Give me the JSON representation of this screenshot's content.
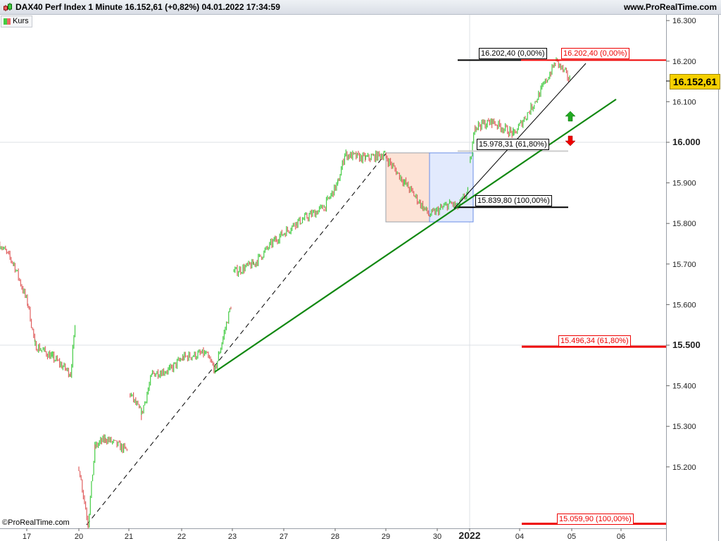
{
  "header": {
    "title": "DAX40 Perf Index 1 Minute 16.152,61 (+0,82%) 04.01.2022 17:34:59",
    "site": "www.ProRealTime.com",
    "legend": "Kurs"
  },
  "footer": {
    "copyright": "©ProRealTime.com"
  },
  "colors": {
    "up": "#44cc44",
    "down": "#e06060",
    "trend": "#118811",
    "fib_red": "#ee0000",
    "price_box": "#f5d000",
    "rect_orange": "#fde3d6",
    "rect_blue": "#e2eafd"
  },
  "current_price": "16.152,61",
  "chart_data": {
    "type": "candlestick",
    "title": "DAX40 Perf Index 1 Minute",
    "x_tick_labels": [
      "17",
      "20",
      "21",
      "22",
      "23",
      "27",
      "28",
      "29",
      "30",
      "2022",
      "04",
      "05",
      "06"
    ],
    "y_tick_labels": [
      "16.300",
      "16.200",
      "16.100",
      "16.000",
      "15.900",
      "15.800",
      "15.700",
      "15.600",
      "15.500",
      "15.400",
      "15.300",
      "15.200"
    ],
    "y_ticks": [
      16300,
      16200,
      16100,
      16000,
      15900,
      15800,
      15700,
      15600,
      15500,
      15400,
      15300,
      15200
    ],
    "ylim": [
      15040,
      16330
    ],
    "grid": "horizontal at 16000 and 15500, vertical at 2022",
    "price_path": [
      [
        "2021-12-16 14:40",
        15750
      ],
      [
        "2021-12-16 18:30",
        15700
      ],
      [
        "2021-12-17 08:20",
        15600
      ],
      [
        "2021-12-17 10:15",
        15500
      ],
      [
        "2021-12-17 15:00",
        15470
      ],
      [
        "2021-12-17 19:45",
        15430
      ],
      [
        "2021-12-17 21:15",
        15570
      ],
      [
        "2021-12-20 08:00",
        15200
      ],
      [
        "2021-12-20 10:35",
        15060
      ],
      [
        "2021-12-20 12:30",
        15250
      ],
      [
        "2021-12-20 15:30",
        15270
      ],
      [
        "2021-12-20 21:30",
        15240
      ],
      [
        "2021-12-21 08:20",
        15380
      ],
      [
        "2021-12-21 11:20",
        15330
      ],
      [
        "2021-12-21 14:15",
        15430
      ],
      [
        "2021-12-21 19:00",
        15440
      ],
      [
        "2021-12-22 08:25",
        15470
      ],
      [
        "2021-12-22 14:25",
        15480
      ],
      [
        "2021-12-22 17:15",
        15440
      ],
      [
        "2021-12-22 21:40",
        15600
      ],
      [
        "2021-12-23 08:25",
        15680
      ],
      [
        "2021-12-23 13:50",
        15700
      ],
      [
        "2021-12-23 19:40",
        15760
      ],
      [
        "2021-12-27 11:15",
        15800
      ],
      [
        "2021-12-27 19:00",
        15840
      ],
      [
        "2021-12-28 08:45",
        15900
      ],
      [
        "2021-12-28 10:40",
        15970
      ],
      [
        "2021-12-28 16:25",
        15960
      ],
      [
        "2021-12-28 21:25",
        15970
      ],
      [
        "2021-12-29 13:10",
        15900
      ],
      [
        "2021-12-29 19:50",
        15820
      ],
      [
        "2021-12-30 13:45",
        15850
      ],
      [
        "2021-12-30 16:50",
        15840
      ],
      [
        "2021-12-30 21:25",
        15880
      ],
      [
        "2022-01-03 08:10",
        15950
      ],
      [
        "2022-01-03 09:30",
        16040
      ],
      [
        "2022-01-03 14:30",
        16050
      ],
      [
        "2022-01-03 20:25",
        16020
      ],
      [
        "2022-01-04 10:56",
        16100
      ],
      [
        "2022-01-04 14:56",
        16200
      ],
      [
        "2022-01-04 17:34",
        16152.61
      ]
    ],
    "fibonacci": [
      {
        "label": "16.202,40 (0,00%)",
        "price": 16202.4
      },
      {
        "label": "15.978,31 (61,80%)",
        "price": 15978.31
      },
      {
        "label": "15.839,80 (100,00%)",
        "price": 15839.8
      },
      {
        "label": "16.202,40 (0,00%)",
        "price": 16202.4,
        "color": "red"
      },
      {
        "label": "15.496,34 (61,80%)",
        "price": 15496.34,
        "color": "red"
      },
      {
        "label": "15.059,90 (100,00%)",
        "price": 15059.9,
        "color": "red"
      }
    ],
    "arrows": [
      {
        "direction": "up",
        "color": "green"
      },
      {
        "direction": "down",
        "color": "red"
      }
    ]
  }
}
